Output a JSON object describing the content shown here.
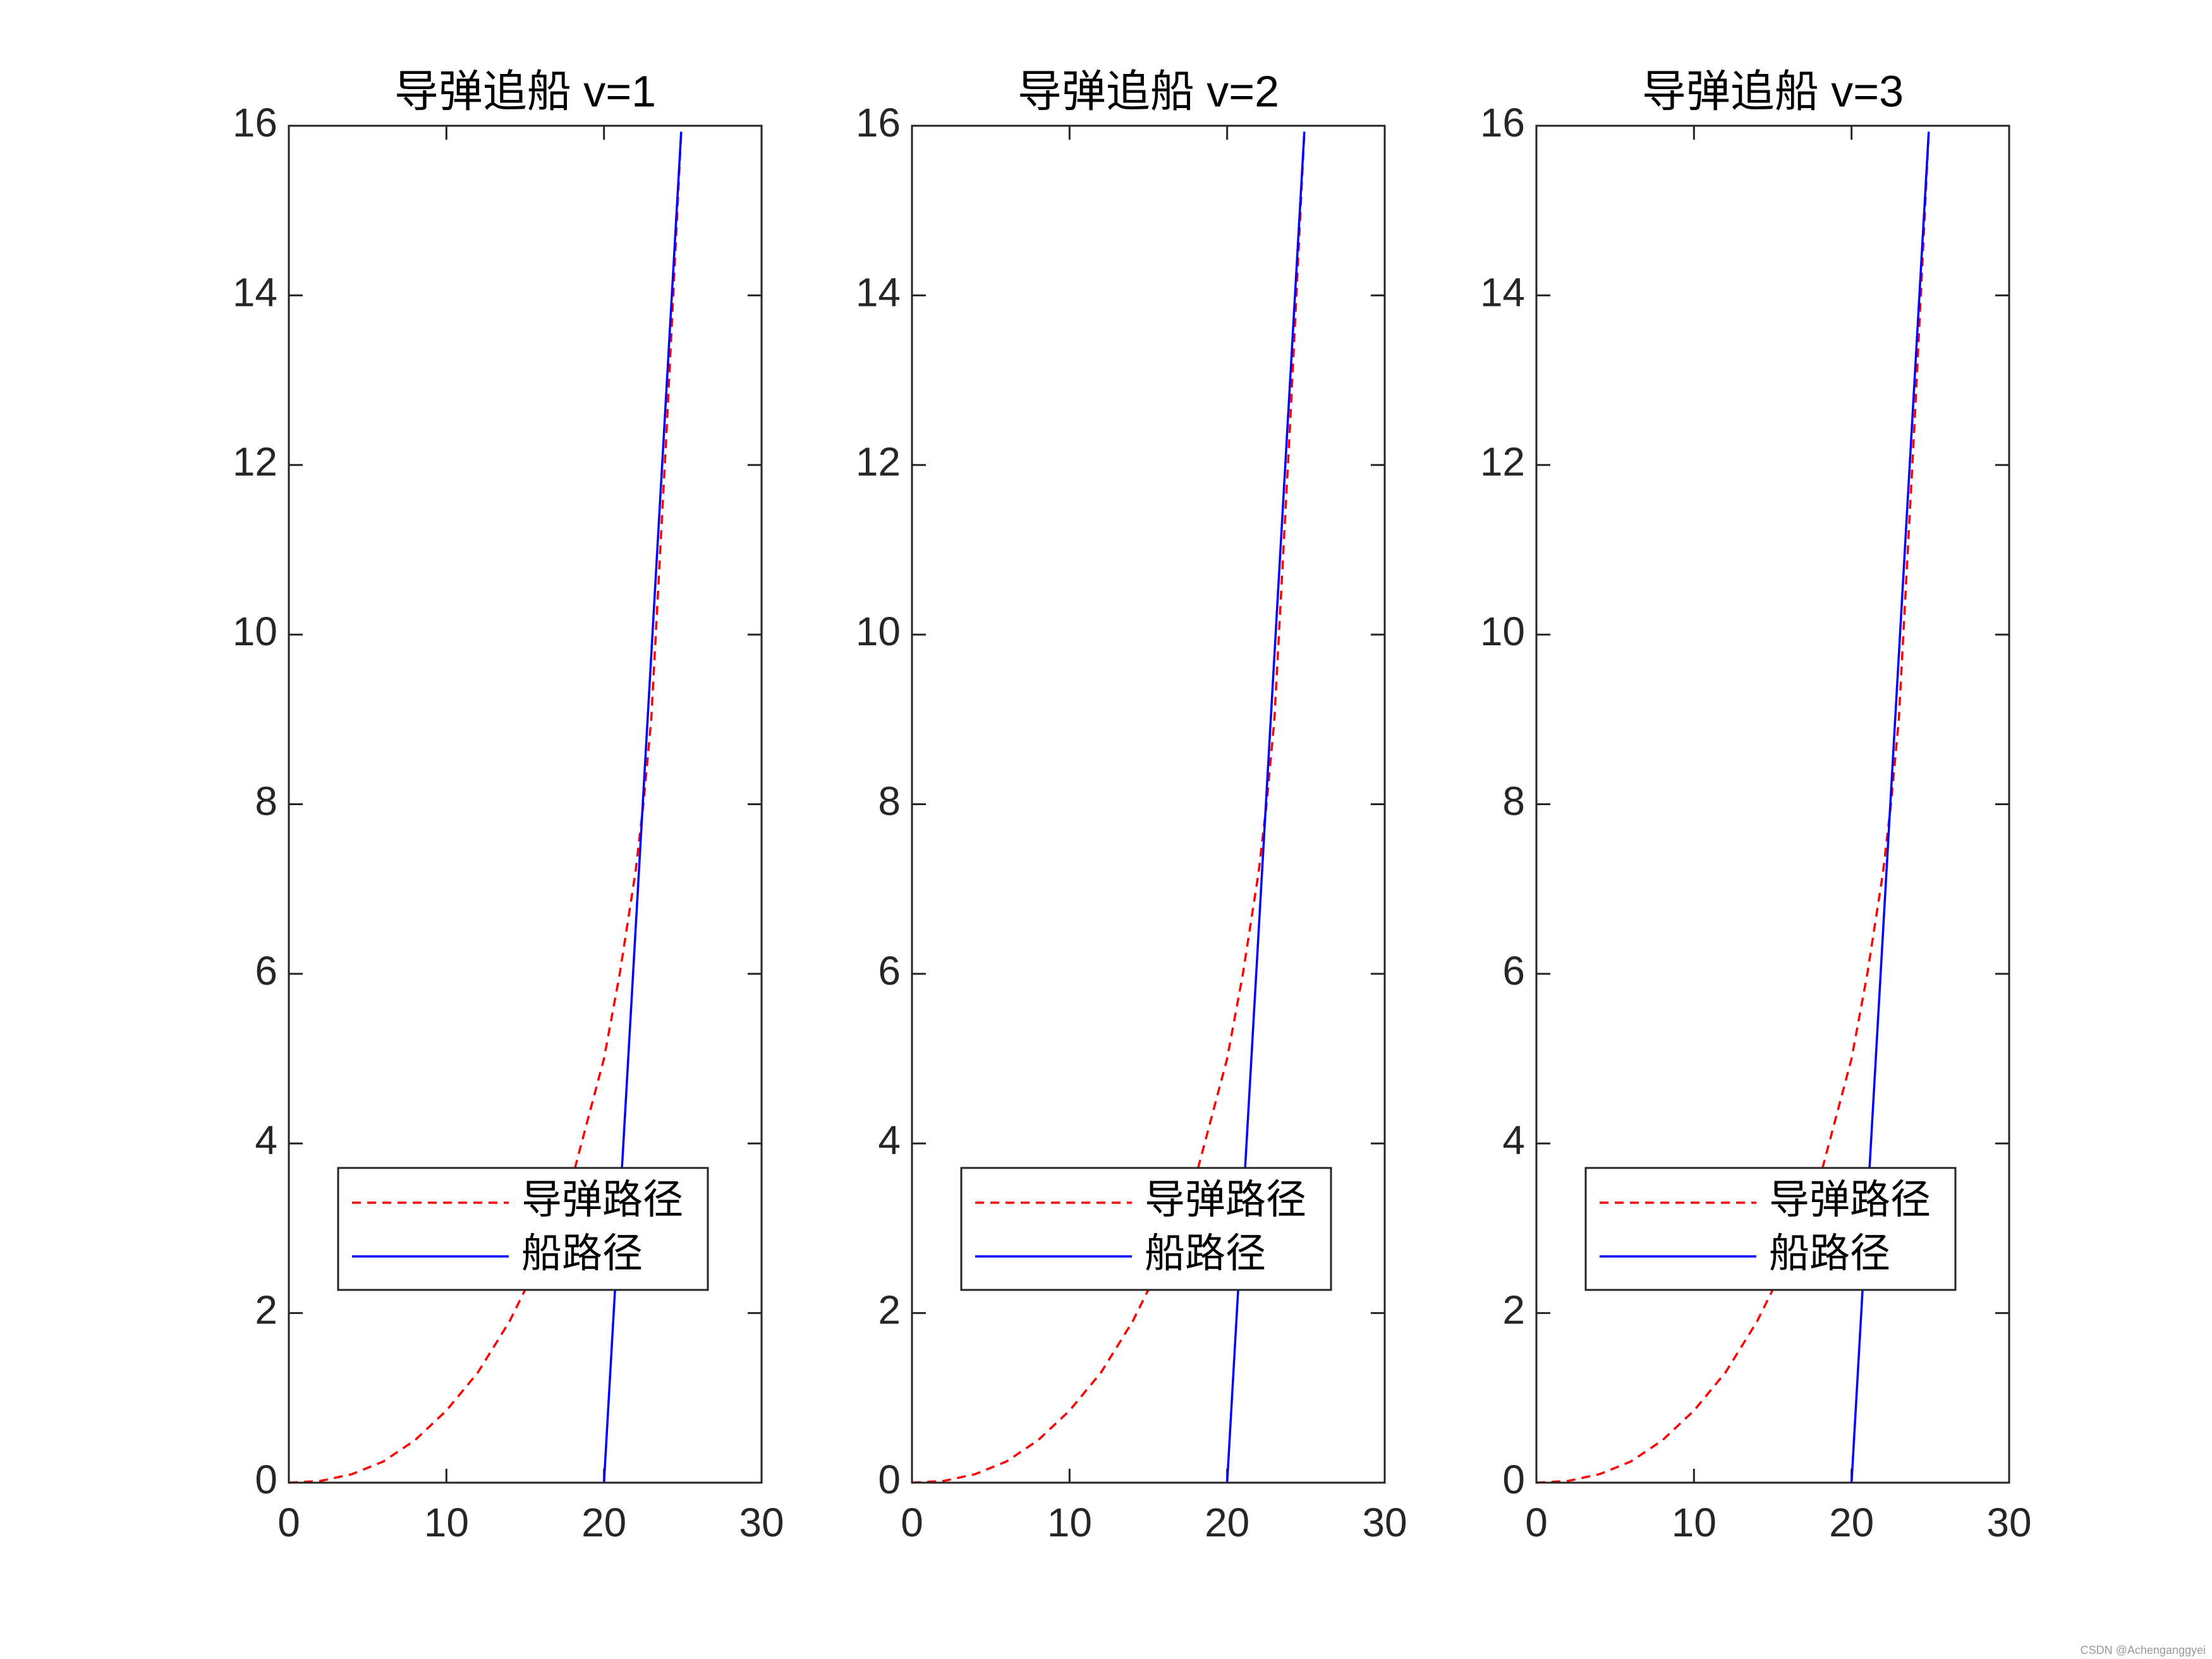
{
  "chart_data": [
    {
      "type": "line",
      "title": "导弹追船 v=1",
      "series": [
        {
          "name": "导弹路径",
          "color": "#ff0000",
          "linestyle": "dashed",
          "x": [
            0,
            2,
            4,
            6,
            8,
            10,
            12,
            14,
            16,
            18,
            20,
            21,
            22,
            22.5,
            23,
            24,
            24.9
          ],
          "values": [
            0,
            0.02,
            0.1,
            0.25,
            0.5,
            0.85,
            1.3,
            1.9,
            2.65,
            3.6,
            5,
            6,
            7.2,
            8,
            9,
            12.5,
            15.93
          ]
        },
        {
          "name": "船路径",
          "color": "#0000ff",
          "linestyle": "solid",
          "x": [
            20,
            24.9
          ],
          "values": [
            0,
            15.93
          ]
        }
      ],
      "xlim": [
        0,
        30
      ],
      "xticks": [
        0,
        10,
        20,
        30
      ],
      "ylim": [
        0,
        16
      ],
      "yticks": [
        0,
        2,
        4,
        6,
        8,
        10,
        12,
        14,
        16
      ],
      "legend": "bottom"
    },
    {
      "type": "line",
      "title": "导弹追船 v=2",
      "series": [
        {
          "name": "导弹路径",
          "color": "#ff0000",
          "linestyle": "dashed",
          "x": [
            0,
            2,
            4,
            6,
            8,
            10,
            12,
            14,
            16,
            18,
            20,
            21,
            22,
            22.5,
            23,
            24,
            24.9
          ],
          "values": [
            0,
            0.02,
            0.1,
            0.25,
            0.5,
            0.85,
            1.3,
            1.9,
            2.65,
            3.6,
            5,
            6,
            7.2,
            8,
            9,
            12.5,
            15.93
          ]
        },
        {
          "name": "船路径",
          "color": "#0000ff",
          "linestyle": "solid",
          "x": [
            20,
            24.9
          ],
          "values": [
            0,
            15.93
          ]
        }
      ],
      "xlim": [
        0,
        30
      ],
      "xticks": [
        0,
        10,
        20,
        30
      ],
      "ylim": [
        0,
        16
      ],
      "yticks": [
        0,
        2,
        4,
        6,
        8,
        10,
        12,
        14,
        16
      ],
      "legend": "bottom"
    },
    {
      "type": "line",
      "title": "导弹追船 v=3",
      "series": [
        {
          "name": "导弹路径",
          "color": "#ff0000",
          "linestyle": "dashed",
          "x": [
            0,
            2,
            4,
            6,
            8,
            10,
            12,
            14,
            16,
            18,
            20,
            21,
            22,
            22.5,
            23,
            24,
            24.9
          ],
          "values": [
            0,
            0.02,
            0.1,
            0.25,
            0.5,
            0.85,
            1.3,
            1.9,
            2.65,
            3.6,
            5,
            6,
            7.2,
            8,
            9,
            12.5,
            15.93
          ]
        },
        {
          "name": "船路径",
          "color": "#0000ff",
          "linestyle": "solid",
          "x": [
            20,
            24.9
          ],
          "values": [
            0,
            15.93
          ]
        }
      ],
      "xlim": [
        0,
        30
      ],
      "xticks": [
        0,
        10,
        20,
        30
      ],
      "ylim": [
        0,
        16
      ],
      "yticks": [
        0,
        2,
        4,
        6,
        8,
        10,
        12,
        14,
        16
      ],
      "legend": "bottom"
    }
  ],
  "watermark": "CSDN @Achenganggyei"
}
